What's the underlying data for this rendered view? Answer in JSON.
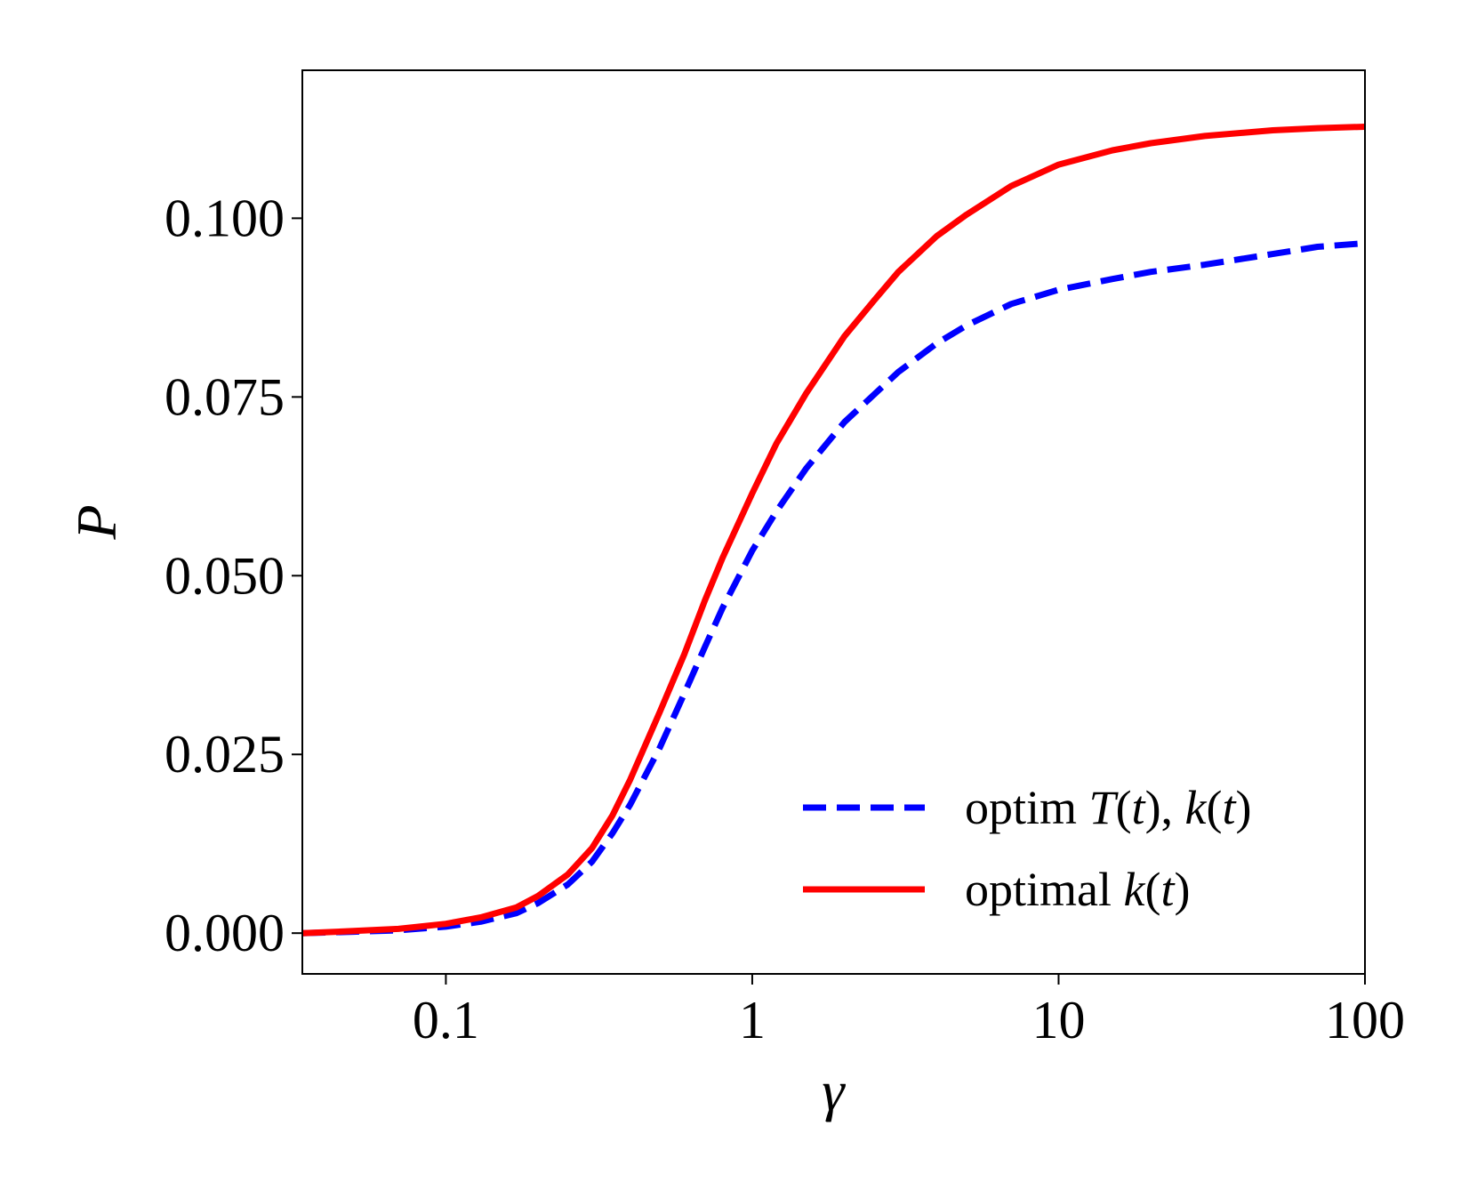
{
  "chart_data": {
    "type": "line",
    "xscale": "log",
    "xlim": [
      0.034,
      100
    ],
    "ylim": [
      -0.0057,
      0.1207
    ],
    "xlabel": "γ",
    "ylabel": "P",
    "xticks": [
      {
        "value": 0.1,
        "label": "0.1"
      },
      {
        "value": 1,
        "label": "1"
      },
      {
        "value": 10,
        "label": "10"
      },
      {
        "value": 100,
        "label": "100"
      }
    ],
    "yticks": [
      {
        "value": 0.0,
        "label": "0.000"
      },
      {
        "value": 0.025,
        "label": "0.025"
      },
      {
        "value": 0.05,
        "label": "0.050"
      },
      {
        "value": 0.075,
        "label": "0.075"
      },
      {
        "value": 0.1,
        "label": "0.100"
      }
    ],
    "legend_position": "lower-right",
    "series": [
      {
        "name": "optim T(t), k(t)",
        "legend_parts": [
          {
            "text": "optim ",
            "italic": false
          },
          {
            "text": "T",
            "italic": true
          },
          {
            "text": "(",
            "italic": false
          },
          {
            "text": "t",
            "italic": true
          },
          {
            "text": "), ",
            "italic": false
          },
          {
            "text": "k",
            "italic": true
          },
          {
            "text": "(",
            "italic": false
          },
          {
            "text": "t",
            "italic": true
          },
          {
            "text": ")",
            "italic": false
          }
        ],
        "color": "#0000ff",
        "dash": "dashed",
        "x": [
          0.034,
          0.05,
          0.07,
          0.1,
          0.13,
          0.17,
          0.2,
          0.25,
          0.3,
          0.35,
          0.4,
          0.5,
          0.6,
          0.7,
          0.8,
          1.0,
          1.2,
          1.5,
          2.0,
          3.0,
          4.0,
          5.0,
          7.0,
          10,
          15,
          20,
          30,
          50,
          70,
          100
        ],
        "y": [
          0.0,
          0.0002,
          0.0004,
          0.0009,
          0.0016,
          0.0028,
          0.0042,
          0.0068,
          0.01,
          0.014,
          0.018,
          0.026,
          0.0335,
          0.04,
          0.0455,
          0.0535,
          0.059,
          0.065,
          0.0715,
          0.0785,
          0.0825,
          0.085,
          0.088,
          0.09,
          0.0915,
          0.0925,
          0.0935,
          0.095,
          0.096,
          0.0965
        ]
      },
      {
        "name": "optimal k(t)",
        "legend_parts": [
          {
            "text": "optimal ",
            "italic": false
          },
          {
            "text": "k",
            "italic": true
          },
          {
            "text": "(",
            "italic": false
          },
          {
            "text": "t",
            "italic": true
          },
          {
            "text": ")",
            "italic": false
          }
        ],
        "color": "#ff0000",
        "dash": "solid",
        "x": [
          0.034,
          0.05,
          0.07,
          0.1,
          0.13,
          0.17,
          0.2,
          0.25,
          0.3,
          0.35,
          0.4,
          0.5,
          0.6,
          0.7,
          0.8,
          1.0,
          1.2,
          1.5,
          2.0,
          2.5,
          3.0,
          4.0,
          5.0,
          7.0,
          10,
          15,
          20,
          30,
          50,
          70,
          100
        ],
        "y": [
          0.0,
          0.0003,
          0.0006,
          0.0013,
          0.0022,
          0.0036,
          0.0052,
          0.0082,
          0.0119,
          0.0165,
          0.0215,
          0.031,
          0.039,
          0.0465,
          0.0525,
          0.0615,
          0.0685,
          0.0755,
          0.0835,
          0.0885,
          0.0925,
          0.0975,
          0.1005,
          0.1045,
          0.1075,
          0.1095,
          0.1105,
          0.1115,
          0.1123,
          0.1126,
          0.1128
        ]
      }
    ]
  }
}
